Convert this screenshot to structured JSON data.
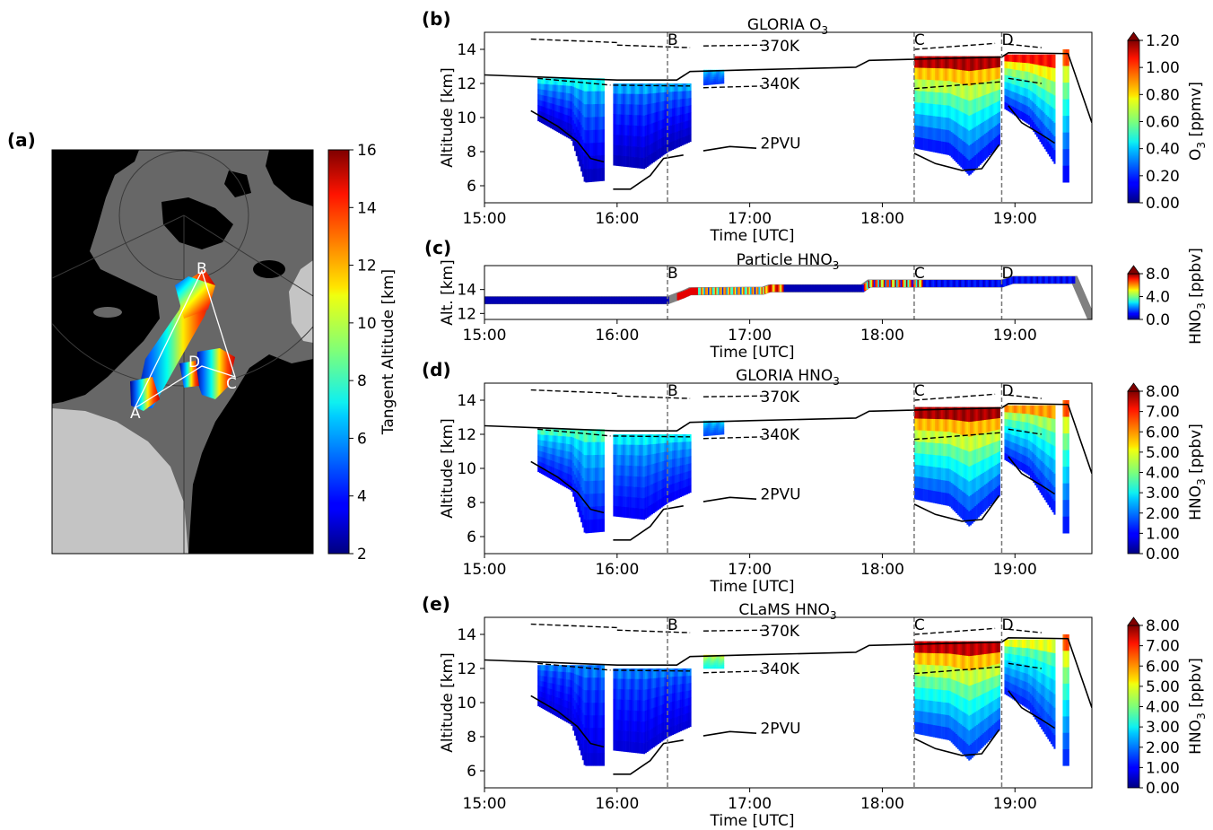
{
  "figure": {
    "panel_labels": [
      "(a)",
      "(b)",
      "(c)",
      "(d)",
      "(e)"
    ]
  },
  "chart_data": [
    {
      "id": "a",
      "type": "map",
      "panel_label": "(a)",
      "title": "",
      "colorbar": {
        "label": "Tangent Altitude [km]",
        "range": [
          2,
          16
        ],
        "ticks": [
          "2",
          "4",
          "6",
          "8",
          "10",
          "12",
          "14",
          "16"
        ],
        "colormap": "jet"
      },
      "waypoints": [
        "A",
        "B",
        "C",
        "D"
      ],
      "colors": {
        "ocean": "#676767",
        "land_dark": "#000000",
        "land_light": "#c4c4c4"
      }
    },
    {
      "id": "b",
      "type": "heatmap",
      "panel_label": "(b)",
      "title": "GLORIA O",
      "title_sub": "3",
      "xlabel": "Time [UTC]",
      "ylabel": "Altitude [km]",
      "xlim": [
        15.0,
        19.58
      ],
      "ylim": [
        5.0,
        15.0
      ],
      "xticks": [
        "15:00",
        "16:00",
        "17:00",
        "18:00",
        "19:00"
      ],
      "yticks": [
        "6",
        "8",
        "10",
        "12",
        "14"
      ],
      "markers": [
        {
          "label": "B",
          "x": 16.38
        },
        {
          "label": "C",
          "x": 18.24
        },
        {
          "label": "D",
          "x": 18.9
        }
      ],
      "annotations": [
        "370K",
        "340K",
        "2PVU"
      ],
      "colorbar": {
        "label_prefix": "O",
        "label_sub": "3",
        "label_suffix": " [ppmv]",
        "range": [
          0.0,
          1.2
        ],
        "ticks": [
          "0.00",
          "0.20",
          "0.40",
          "0.60",
          "0.80",
          "1.00",
          "1.20"
        ],
        "extend": "max",
        "colormap": "jet"
      },
      "flight_altitude": [
        [
          15.0,
          12.5
        ],
        [
          15.5,
          12.35
        ],
        [
          16.0,
          12.2
        ],
        [
          16.45,
          12.2
        ],
        [
          16.55,
          12.7
        ],
        [
          17.0,
          12.8
        ],
        [
          17.8,
          12.95
        ],
        [
          17.9,
          13.35
        ],
        [
          18.9,
          13.55
        ],
        [
          18.95,
          13.8
        ],
        [
          19.4,
          13.75
        ],
        [
          19.58,
          9.7
        ]
      ],
      "curtain_segments": [
        {
          "x0": 15.4,
          "x1": 15.9,
          "top": 12.3,
          "bottom": [
            [
              15.4,
              9.8
            ],
            [
              15.65,
              8.7
            ],
            [
              15.75,
              6.2
            ],
            [
              15.9,
              6.3
            ]
          ],
          "value_top": 0.4,
          "value_bottom": 0.05
        },
        {
          "x0": 15.97,
          "x1": 16.55,
          "top": 12.0,
          "bottom": [
            [
              15.97,
              7.2
            ],
            [
              16.2,
              7.0
            ],
            [
              16.38,
              8.0
            ],
            [
              16.55,
              8.6
            ]
          ],
          "value_top": 0.3,
          "value_bottom": 0.05
        },
        {
          "x0": 16.65,
          "x1": 16.8,
          "top": 12.8,
          "bottom": [
            [
              16.65,
              11.9
            ],
            [
              16.8,
              12.0
            ]
          ],
          "value_top": 0.35,
          "value_bottom": 0.2
        },
        {
          "x0": 18.24,
          "x1": 18.88,
          "top": 13.6,
          "bottom": [
            [
              18.24,
              8.2
            ],
            [
              18.5,
              7.8
            ],
            [
              18.65,
              6.6
            ],
            [
              18.88,
              8.4
            ]
          ],
          "value_top": 1.1,
          "value_bottom": 0.1
        },
        {
          "x0": 18.92,
          "x1": 19.3,
          "top": 13.7,
          "bottom": [
            [
              18.92,
              10.5
            ],
            [
              19.1,
              9.6
            ],
            [
              19.3,
              7.2
            ]
          ],
          "value_top": 1.0,
          "value_bottom": 0.1
        },
        {
          "x0": 19.36,
          "x1": 19.4,
          "top": 14.0,
          "bottom": [
            [
              19.36,
              6.2
            ],
            [
              19.4,
              6.2
            ]
          ],
          "value_top": 0.9,
          "value_bottom": 0.1
        }
      ]
    },
    {
      "id": "c",
      "type": "line",
      "panel_label": "(c)",
      "title": "Particle HNO",
      "title_sub": "3",
      "xlabel": "Time [UTC]",
      "ylabel": "Alt. [km]",
      "xlim": [
        15.0,
        19.58
      ],
      "ylim": [
        11.5,
        16.0
      ],
      "xticks": [
        "15:00",
        "16:00",
        "17:00",
        "18:00",
        "19:00"
      ],
      "yticks": [
        "12",
        "14"
      ],
      "markers": [
        {
          "label": "B",
          "x": 16.38
        },
        {
          "label": "C",
          "x": 18.24
        },
        {
          "label": "D",
          "x": 18.9
        }
      ],
      "colorbar": {
        "label_prefix": "HNO",
        "label_sub": "3",
        "label_suffix": " [ppbv]",
        "range": [
          0.0,
          8.0
        ],
        "ticks": [
          "0.0",
          "4.0",
          "8.0"
        ],
        "extend": "max",
        "colormap": "jet"
      },
      "track": [
        [
          15.0,
          13.1
        ],
        [
          16.38,
          13.1
        ],
        [
          16.5,
          13.6
        ],
        [
          16.55,
          13.85
        ],
        [
          17.1,
          13.9
        ],
        [
          17.15,
          14.1
        ],
        [
          17.85,
          14.1
        ],
        [
          17.9,
          14.5
        ],
        [
          18.9,
          14.5
        ],
        [
          18.98,
          14.8
        ],
        [
          19.45,
          14.8
        ],
        [
          19.58,
          11.5
        ]
      ]
    },
    {
      "id": "d",
      "type": "heatmap",
      "panel_label": "(d)",
      "title": "GLORIA HNO",
      "title_sub": "3",
      "xlabel": "Time [UTC]",
      "ylabel": "Altitude [km]",
      "xlim": [
        15.0,
        19.58
      ],
      "ylim": [
        5.0,
        15.0
      ],
      "xticks": [
        "15:00",
        "16:00",
        "17:00",
        "18:00",
        "19:00"
      ],
      "yticks": [
        "6",
        "8",
        "10",
        "12",
        "14"
      ],
      "markers": [
        {
          "label": "B",
          "x": 16.38
        },
        {
          "label": "C",
          "x": 18.24
        },
        {
          "label": "D",
          "x": 18.9
        }
      ],
      "annotations": [
        "370K",
        "340K",
        "2PVU"
      ],
      "colorbar": {
        "label_prefix": "HNO",
        "label_sub": "3",
        "label_suffix": " [ppbv]",
        "range": [
          0.0,
          8.0
        ],
        "ticks": [
          "0.00",
          "1.00",
          "2.00",
          "3.00",
          "4.00",
          "5.00",
          "6.00",
          "7.00",
          "8.00"
        ],
        "extend": "max",
        "colormap": "jet"
      },
      "flight_altitude": [
        [
          15.0,
          12.5
        ],
        [
          15.5,
          12.35
        ],
        [
          16.0,
          12.2
        ],
        [
          16.45,
          12.2
        ],
        [
          16.55,
          12.7
        ],
        [
          17.0,
          12.8
        ],
        [
          17.8,
          12.95
        ],
        [
          17.9,
          13.35
        ],
        [
          18.9,
          13.55
        ],
        [
          18.95,
          13.8
        ],
        [
          19.4,
          13.75
        ],
        [
          19.58,
          9.7
        ]
      ],
      "curtain_segments": [
        {
          "x0": 15.4,
          "x1": 15.9,
          "top": 12.3,
          "bottom": [
            [
              15.4,
              9.8
            ],
            [
              15.65,
              8.7
            ],
            [
              15.75,
              6.2
            ],
            [
              15.9,
              6.3
            ]
          ],
          "value_top": 3.2,
          "value_bottom": 0.8
        },
        {
          "x0": 15.97,
          "x1": 16.55,
          "top": 12.0,
          "bottom": [
            [
              15.97,
              7.2
            ],
            [
              16.2,
              7.0
            ],
            [
              16.38,
              8.0
            ],
            [
              16.55,
              8.6
            ]
          ],
          "value_top": 2.6,
          "value_bottom": 0.8
        },
        {
          "x0": 16.65,
          "x1": 16.8,
          "top": 12.8,
          "bottom": [
            [
              16.65,
              11.9
            ],
            [
              16.8,
              12.0
            ]
          ],
          "value_top": 2.5,
          "value_bottom": 1.5
        },
        {
          "x0": 18.24,
          "x1": 18.88,
          "top": 13.6,
          "bottom": [
            [
              18.24,
              8.2
            ],
            [
              18.5,
              7.8
            ],
            [
              18.65,
              6.6
            ],
            [
              18.88,
              8.4
            ]
          ],
          "value_top": 7.4,
          "value_bottom": 0.8
        },
        {
          "x0": 18.92,
          "x1": 19.3,
          "top": 13.7,
          "bottom": [
            [
              18.92,
              10.5
            ],
            [
              19.1,
              9.6
            ],
            [
              19.3,
              7.2
            ]
          ],
          "value_top": 5.5,
          "value_bottom": 0.8
        },
        {
          "x0": 19.36,
          "x1": 19.4,
          "top": 14.0,
          "bottom": [
            [
              19.36,
              6.2
            ],
            [
              19.4,
              6.2
            ]
          ],
          "value_top": 6.0,
          "value_bottom": 0.8
        }
      ]
    },
    {
      "id": "e",
      "type": "heatmap",
      "panel_label": "(e)",
      "title": "CLaMS HNO",
      "title_sub": "3",
      "xlabel": "Time [UTC]",
      "ylabel": "Altitude [km]",
      "xlim": [
        15.0,
        19.58
      ],
      "ylim": [
        5.0,
        15.0
      ],
      "xticks": [
        "15:00",
        "16:00",
        "17:00",
        "18:00",
        "19:00"
      ],
      "yticks": [
        "6",
        "8",
        "10",
        "12",
        "14"
      ],
      "markers": [
        {
          "label": "B",
          "x": 16.38
        },
        {
          "label": "C",
          "x": 18.24
        },
        {
          "label": "D",
          "x": 18.9
        }
      ],
      "annotations": [
        "370K",
        "340K",
        "2PVU"
      ],
      "colorbar": {
        "label_prefix": "HNO",
        "label_sub": "3",
        "label_suffix": " [ppbv]",
        "range": [
          0.0,
          8.0
        ],
        "ticks": [
          "0.00",
          "1.00",
          "2.00",
          "3.00",
          "4.00",
          "5.00",
          "6.00",
          "7.00",
          "8.00"
        ],
        "extend": "max",
        "colormap": "jet"
      },
      "flight_altitude": [
        [
          15.0,
          12.5
        ],
        [
          15.5,
          12.35
        ],
        [
          16.0,
          12.2
        ],
        [
          16.45,
          12.2
        ],
        [
          16.55,
          12.7
        ],
        [
          17.0,
          12.8
        ],
        [
          17.8,
          12.95
        ],
        [
          17.9,
          13.35
        ],
        [
          18.9,
          13.55
        ],
        [
          18.95,
          13.8
        ],
        [
          19.4,
          13.75
        ],
        [
          19.58,
          9.7
        ]
      ],
      "curtain_segments": [
        {
          "x0": 15.4,
          "x1": 15.9,
          "top": 12.2,
          "bottom": [
            [
              15.4,
              9.8
            ],
            [
              15.65,
              8.7
            ],
            [
              15.75,
              6.3
            ],
            [
              15.9,
              6.3
            ]
          ],
          "value_top": 1.6,
          "value_bottom": 0.6
        },
        {
          "x0": 15.97,
          "x1": 16.55,
          "top": 12.0,
          "bottom": [
            [
              15.97,
              7.2
            ],
            [
              16.2,
              7.0
            ],
            [
              16.38,
              8.0
            ],
            [
              16.55,
              8.6
            ]
          ],
          "value_top": 1.6,
          "value_bottom": 0.6
        },
        {
          "x0": 16.65,
          "x1": 16.8,
          "top": 12.8,
          "bottom": [
            [
              16.65,
              12.0
            ],
            [
              16.8,
              12.0
            ]
          ],
          "value_top": 4.5,
          "value_bottom": 3.0
        },
        {
          "x0": 18.24,
          "x1": 18.88,
          "top": 13.6,
          "bottom": [
            [
              18.24,
              8.2
            ],
            [
              18.5,
              7.8
            ],
            [
              18.65,
              6.6
            ],
            [
              18.88,
              8.4
            ]
          ],
          "value_top": 7.2,
          "value_bottom": 1.0
        },
        {
          "x0": 18.92,
          "x1": 19.3,
          "top": 13.7,
          "bottom": [
            [
              18.92,
              10.5
            ],
            [
              19.1,
              9.6
            ],
            [
              19.3,
              7.2
            ]
          ],
          "value_top": 4.5,
          "value_bottom": 1.0
        },
        {
          "x0": 19.36,
          "x1": 19.4,
          "top": 14.0,
          "bottom": [
            [
              19.36,
              6.3
            ],
            [
              19.4,
              6.3
            ]
          ],
          "value_top": 6.0,
          "value_bottom": 1.0
        }
      ]
    }
  ]
}
